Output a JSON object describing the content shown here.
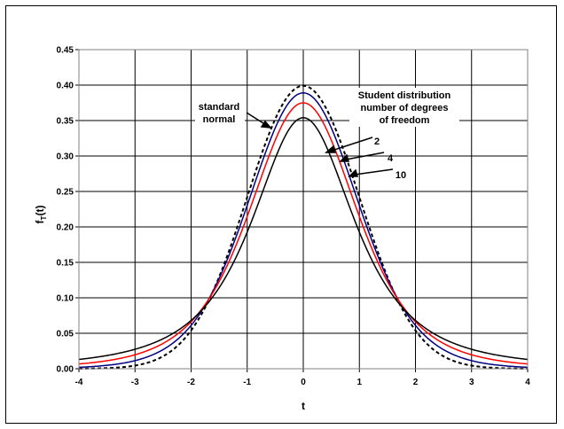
{
  "chart_data": {
    "type": "line",
    "xlabel": "t",
    "ylabel": "f",
    "ylabel_sub": "T",
    "ylabel_tail": "(t)",
    "xlim": [
      -4,
      4
    ],
    "ylim": [
      0,
      0.45
    ],
    "xticks": [
      "-4",
      "-3",
      "-2",
      "-1",
      "0",
      "1",
      "2",
      "3",
      "4"
    ],
    "yticks": [
      "0.00",
      "0.05",
      "0.10",
      "0.15",
      "0.20",
      "0.25",
      "0.30",
      "0.35",
      "0.40",
      "0.45"
    ],
    "grid": true,
    "annotations": {
      "normal_line1": "standard",
      "normal_line2": "normal",
      "student_line1": "Student distribution",
      "student_line2": "number of degrees",
      "student_line3": "of freedom",
      "df2": "2",
      "df4": "4",
      "df10": "10"
    },
    "series": [
      {
        "dist": "normal",
        "color": "#000000",
        "dash": "4,3",
        "peak": 0.399
      },
      {
        "dist": "student",
        "df": 10,
        "color": "#000080",
        "peak": 0.389
      },
      {
        "dist": "student",
        "df": 4,
        "color": "#ff0000",
        "peak": 0.375
      },
      {
        "dist": "student",
        "df": 2,
        "color": "#000000",
        "peak": 0.354
      }
    ]
  }
}
